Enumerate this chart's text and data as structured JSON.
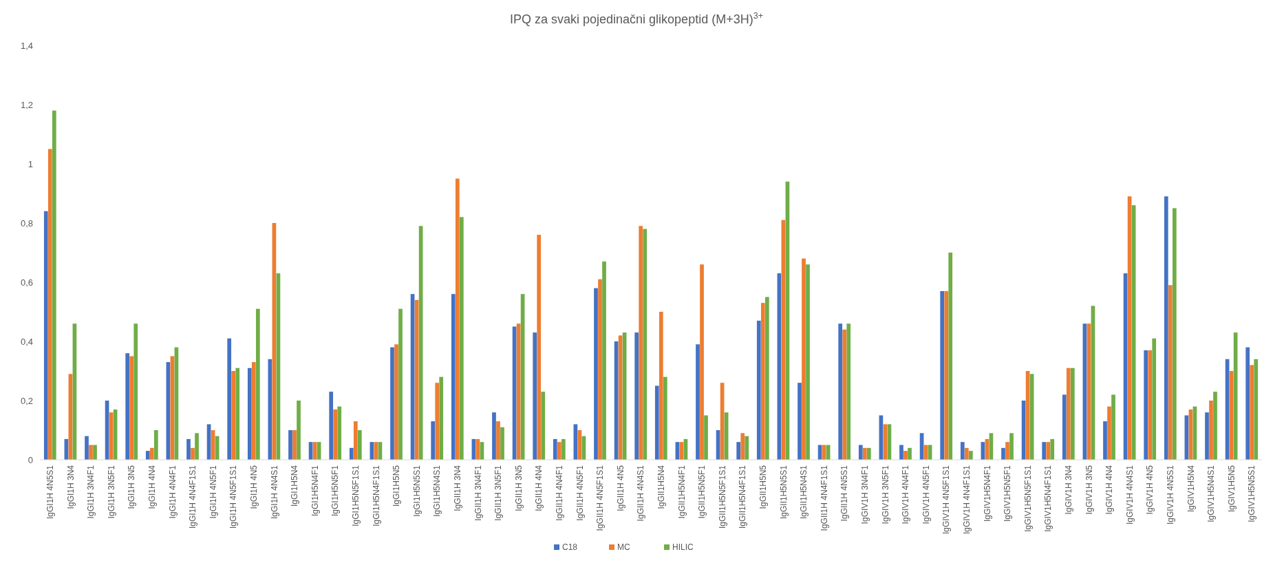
{
  "chart_data": {
    "type": "bar",
    "title": "IPQ za svaki pojedinačni glikopeptid (M+3H)$^{3+}$",
    "categories": [
      "IgGI1H 4N5S1",
      "IgGI1H 3N4",
      "IgGI1H 3N4F1",
      "IgGI1H 3N5F1",
      "IgGI1H 3N5",
      "IgGI1H 4N4",
      "IgGI1H 4N4F1",
      "IgGI1H 4N4F1S1",
      "IgGI1H 4N5F1",
      "IgGI1H 4N5F1S1",
      "IgGI1H 4N5",
      "IgGI1H 4N4S1",
      "IgGI1H5N4",
      "IgGI1H5N4F1",
      "IgGI1H5N5F1",
      "IgGI1H5N5F1S1",
      "IgGI1H5N4F1S1",
      "IgGI1H5N5",
      "IgGI1H5N5S1",
      "IgGI1H5N4S1",
      "IgGII1H 3N4",
      "IgGII1H 3N4F1",
      "IgGII1H 3N5F1",
      "IgGII1H 3N5",
      "IgGII1H 4N4",
      "IgGII1H 4N4F1",
      "IgGII1H 4N5F1",
      "IgGII1H 4N5F1S1",
      "IgGII1H 4N5",
      "IgGII1H 4N4S1",
      "IgGII1H5N4",
      "IgGII1H5N4F1",
      "IgGII1H5N5F1",
      "IgGII1H5N5F1S1",
      "IgGII1H5N4F1S1",
      "IgGII1H5N5",
      "IgGII1H5N5S1",
      "IgGII1H5N4S1",
      "IgGII1H 4N4F1S1",
      "IgGII1H 4N5S1",
      "IgGIV1H 3N4F1",
      "IgGIV1H 3N5F1",
      "IgGIV1H 4N4F1",
      "IgGIV1H 4N5F1",
      "IgGIV1H 4N5F1S1",
      "IgGIV1H 4N4F1S1",
      "IgGIV1H5N4F1",
      "IgGIV1H5N5F1",
      "IgGIV1H5N5F1S1",
      "IgGIV1H5N4F1S1",
      "IgGIV1H 3N4",
      "IgGIV1H 3N5",
      "IgGIV1H 4N4",
      "IgGIV1H 4N4S1",
      "IgGIV1H 4N5",
      "IgGIV1H 4N5S1",
      "IgGIV1H5N4",
      "IgGIV1H5N4S1",
      "IgGIV1H5N5",
      "IgGIV1H5N5S1"
    ],
    "series": [
      {
        "name": "C18",
        "color": "#4472c4",
        "values": [
          0.84,
          0.07,
          0.08,
          0.2,
          0.36,
          0.03,
          0.33,
          0.07,
          0.12,
          0.41,
          0.31,
          0.34,
          0.1,
          0.06,
          0.23,
          0.04,
          0.06,
          0.38,
          0.56,
          0.13,
          0.56,
          0.07,
          0.16,
          0.45,
          0.43,
          0.07,
          0.12,
          0.58,
          0.4,
          0.43,
          0.25,
          0.06,
          0.39,
          0.1,
          0.06,
          0.47,
          0.63,
          0.26,
          0.05,
          0.46,
          0.05,
          0.15,
          0.05,
          0.09,
          0.57,
          0.06,
          0.06,
          0.04,
          0.2,
          0.06,
          0.22,
          0.46,
          0.13,
          0.63,
          0.37,
          0.89,
          0.15,
          0.16,
          0.34,
          0.38
        ]
      },
      {
        "name": "MC",
        "color": "#ed7d31",
        "values": [
          1.05,
          0.29,
          0.05,
          0.16,
          0.35,
          0.04,
          0.35,
          0.04,
          0.1,
          0.3,
          0.33,
          0.8,
          0.1,
          0.06,
          0.17,
          0.13,
          0.06,
          0.39,
          0.54,
          0.26,
          0.95,
          0.07,
          0.13,
          0.46,
          0.76,
          0.06,
          0.1,
          0.61,
          0.42,
          0.79,
          0.5,
          0.06,
          0.66,
          0.26,
          0.09,
          0.53,
          0.81,
          0.68,
          0.05,
          0.44,
          0.04,
          0.12,
          0.03,
          0.05,
          0.57,
          0.04,
          0.07,
          0.06,
          0.3,
          0.06,
          0.31,
          0.46,
          0.18,
          0.89,
          0.37,
          0.59,
          0.17,
          0.2,
          0.3,
          0.32
        ]
      },
      {
        "name": "HILIC",
        "color": "#70ad47",
        "values": [
          1.18,
          0.46,
          0.05,
          0.17,
          0.46,
          0.1,
          0.38,
          0.09,
          0.08,
          0.31,
          0.51,
          0.63,
          0.2,
          0.06,
          0.18,
          0.1,
          0.06,
          0.51,
          0.79,
          0.28,
          0.82,
          0.06,
          0.11,
          0.56,
          0.23,
          0.07,
          0.08,
          0.67,
          0.43,
          0.78,
          0.28,
          0.07,
          0.15,
          0.16,
          0.08,
          0.55,
          0.94,
          0.66,
          0.05,
          0.46,
          0.04,
          0.12,
          0.04,
          0.05,
          0.7,
          0.03,
          0.09,
          0.09,
          0.29,
          0.07,
          0.31,
          0.52,
          0.22,
          0.86,
          0.41,
          0.85,
          0.18,
          0.23,
          0.43,
          0.34
        ]
      }
    ],
    "ylim": [
      0,
      1.4
    ],
    "yticks": [
      0,
      {
        "value": 0.2,
        "label": "0,2"
      },
      {
        "value": 0.4,
        "label": "0,4"
      },
      {
        "value": 0.6,
        "label": "0,6"
      },
      {
        "value": 0.8,
        "label": "0,8"
      },
      1,
      {
        "value": 1.2,
        "label": "1,2"
      },
      {
        "value": 1.4,
        "label": "1,4"
      }
    ],
    "legend": "bottom"
  }
}
